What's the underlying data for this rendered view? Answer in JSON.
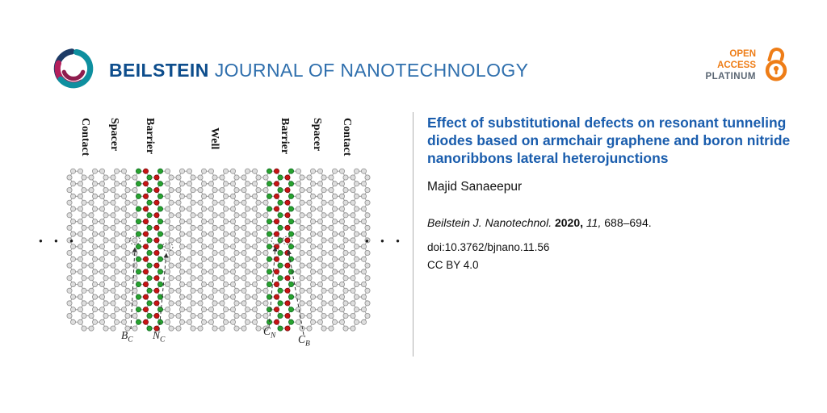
{
  "header": {
    "brand_bold": "BEILSTEIN",
    "brand_rest": "JOURNAL OF NANOTECHNOLOGY",
    "open_access": {
      "line1": "OPEN",
      "line2": "ACCESS",
      "line3": "PLATINUM"
    }
  },
  "figure": {
    "regions": [
      "Contact",
      "Spacer",
      "Barrier",
      "Well",
      "Barrier",
      "Spacer",
      "Contact"
    ],
    "defect_labels": [
      {
        "main": "B",
        "sub": "C"
      },
      {
        "main": "N",
        "sub": "C"
      },
      {
        "main": "C",
        "sub": "N"
      },
      {
        "main": "C",
        "sub": "B"
      }
    ],
    "ellipsis": "● ● ●",
    "colors": {
      "carbon_fill": "#dedede",
      "carbon_stroke": "#8e8e8e",
      "bond": "#a3a3a3",
      "boron": "#c81414",
      "nitrogen": "#28a22e",
      "annotation": "#333333"
    }
  },
  "article": {
    "title": "Effect of substitutional defects on resonant tunneling diodes based on armchair graphene and boron nitride nanoribbons lateral heterojunctions",
    "author": "Majid Sanaeepur",
    "citation": {
      "journal": "Beilstein J. Nanotechnol.",
      "year": "2020,",
      "volume": "11,",
      "pages": "688–694."
    },
    "doi": "doi:10.3762/bjnano.11.56",
    "license": "CC BY 4.0"
  }
}
